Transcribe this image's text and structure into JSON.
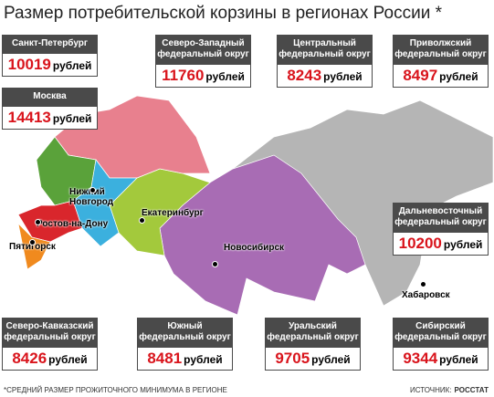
{
  "title": "Размер потребительской корзины в регионах России *",
  "regions": [
    {
      "name": "Санкт-Петербург",
      "value": 10019,
      "unit": "рублей"
    },
    {
      "name": "Москва",
      "value": 14413,
      "unit": "рублей"
    },
    {
      "name": "Северо-Западный федеральный округ",
      "value": 11760,
      "unit": "рублей"
    },
    {
      "name": "Центральный федеральный округ",
      "value": 8243,
      "unit": "рублей"
    },
    {
      "name": "Приволжский федеральный округ",
      "value": 8497,
      "unit": "рублей"
    },
    {
      "name": "Дальневосточный федеральный округ",
      "value": 10200,
      "unit": "рублей"
    },
    {
      "name": "Северо-Кавказский федеральный округ",
      "value": 8426,
      "unit": "рублей"
    },
    {
      "name": "Южный федеральный округ",
      "value": 8481,
      "unit": "рублей"
    },
    {
      "name": "Уральский федеральный округ",
      "value": 9705,
      "unit": "рублей"
    },
    {
      "name": "Сибирский федеральный округ",
      "value": 9344,
      "unit": "рублей"
    }
  ],
  "cities": [
    "Нижний Новгород",
    "Ростов-на-Дону",
    "Пятигорск",
    "Екатеринбург",
    "Новосибирск",
    "Хабаровск"
  ],
  "footnote": "*СРЕДНИЙ РАЗМЕР ПРОЖИТОЧНОГО МИНИМУМА В РЕГИОНЕ",
  "source_label": "ИСТОЧНИК:",
  "source": "РОССТАТ"
}
